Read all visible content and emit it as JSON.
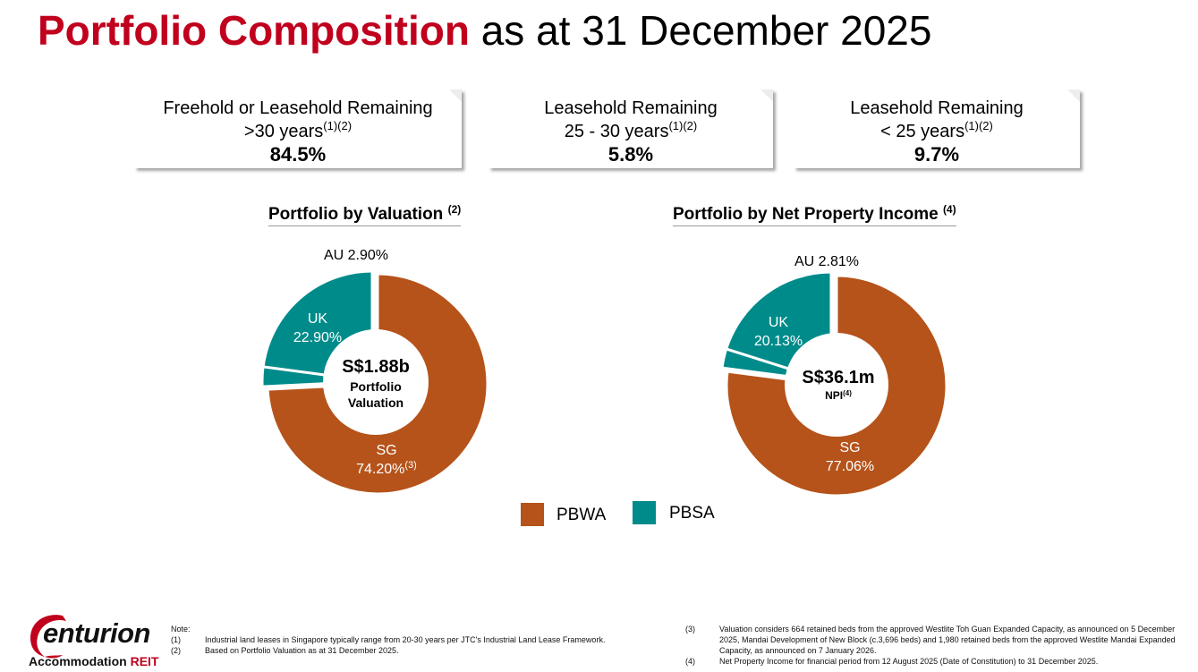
{
  "title": {
    "highlight": "Portfolio Composition",
    "rest": "as at 31 December 2025"
  },
  "boxes": [
    {
      "line1": "Freehold or Leasehold Remaining",
      "line2": ">30 years",
      "sup": "(1)(2)",
      "value": "84.5%"
    },
    {
      "line1": "Leasehold Remaining",
      "line2": "25 - 30 years",
      "sup": "(1)(2)",
      "value": "5.8%"
    },
    {
      "line1": "Leasehold Remaining",
      "line2": "< 25 years",
      "sup": "(1)(2)",
      "value": "9.7%"
    }
  ],
  "colors": {
    "pbwa": "#b5531a",
    "pbsa": "#008b8b",
    "brand_red": "#c0001d"
  },
  "chart_data": [
    {
      "type": "pie",
      "title": "Portfolio by Valuation",
      "title_sup": "(2)",
      "center": {
        "value": "S$1.88b",
        "label1": "Portfolio",
        "label2": "Valuation"
      },
      "slices": [
        {
          "name": "SG",
          "value": 74.2,
          "display": "74.20%",
          "sup": "(3)",
          "category": "PBWA"
        },
        {
          "name": "AU",
          "value": 2.9,
          "display": "2.90%",
          "sup": "",
          "category": "PBSA"
        },
        {
          "name": "UK",
          "value": 22.9,
          "display": "22.90%",
          "sup": "",
          "category": "PBSA"
        }
      ]
    },
    {
      "type": "pie",
      "title": "Portfolio by Net Property Income",
      "title_sup": "(4)",
      "center": {
        "value": "S$36.1m",
        "label1": "NPI",
        "label1_sup": "(4)"
      },
      "slices": [
        {
          "name": "SG",
          "value": 77.06,
          "display": "77.06%",
          "sup": "",
          "category": "PBWA"
        },
        {
          "name": "AU",
          "value": 2.81,
          "display": "2.81%",
          "sup": "",
          "category": "PBSA"
        },
        {
          "name": "UK",
          "value": 20.13,
          "display": "20.13%",
          "sup": "",
          "category": "PBSA"
        }
      ]
    }
  ],
  "legend": [
    {
      "label": "PBWA"
    },
    {
      "label": "PBSA"
    }
  ],
  "logo": {
    "word": "enturion",
    "sub_black": "Accommodation",
    "sub_red": "REIT"
  },
  "notes": {
    "heading": "Note:",
    "left": [
      {
        "num": "(1)",
        "text": "Industrial land leases in Singapore typically range from 20-30 years per JTC's Industrial Land Lease Framework."
      },
      {
        "num": "(2)",
        "text": "Based on Portfolio Valuation as at 31 December 2025."
      }
    ],
    "right": [
      {
        "num": "(3)",
        "text": "Valuation considers 664 retained beds from the approved Westlite Toh Guan Expanded Capacity, as announced on 5 December 2025, Mandai Development of New Block (c.3,696 beds) and 1,980 retained beds from the approved Westlite Mandai Expanded Capacity, as announced on 7 January 2026."
      },
      {
        "num": "(4)",
        "text": "Net Property Income for financial period from 12 August 2025 (Date of Constitution) to 31 December 2025."
      }
    ]
  }
}
